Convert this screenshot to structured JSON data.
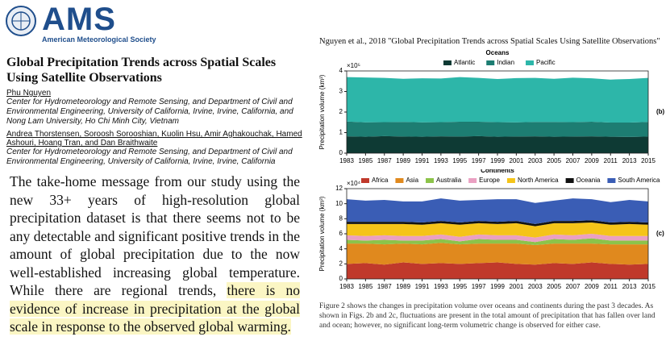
{
  "header": {
    "logo": "AMS",
    "society": "American Meteorological Society"
  },
  "article": {
    "title": "Global Precipitation Trends across Spatial Scales Using Satellite Observations",
    "authors_1": "Phu Nguyen",
    "affiliation_1": "Center for Hydrometeorology and Remote Sensing, and Department of Civil and Environmental Engineering, University of California, Irvine, Irvine, California, and Nong Lam University, Ho Chi Minh City, Vietnam",
    "authors_2": "Andrea Thorstensen, Soroosh Sorooshian, Kuolin Hsu, Amir Aghakouchak, Hamed Ashouri, Hoang Tran, and Dan Braithwaite",
    "affiliation_2": "Center for Hydrometeorology and Remote Sensing, and Department of Civil and Environmental Engineering, University of California, Irvine, Irvine, California"
  },
  "quote": {
    "text": "The take-home message from our study using the new 33+ years of high-resolution global precipitation dataset is that there seems not to be any detectable and significant positive trends in the amount of global precipitation due to the now well-established increasing global temperature. While there are regional trends, ",
    "highlight": "there is no evidence of increase in precipitation at the global scale in response to the observed global warming."
  },
  "figure": {
    "heading": "Nguyen et al., 2018  \"Global Precipitation Trends across Spatial Scales Using Satellite Observations\"",
    "caption": "Figure 2 shows the changes in precipitation volume over oceans and continents during the past 3 decades. As shown in Figs. 2b and 2c, fluctuations are present in the total amount of precipitation that has fallen over land and ocean; however, no significant long-term volumetric change is observed for either case."
  },
  "chart_data": [
    {
      "type": "stacked-area",
      "title": "Oceans",
      "panel": "(b)",
      "y_label": "Precipitation volume (km³)",
      "y_exponent": "×10⁵",
      "x": [
        1983,
        1985,
        1987,
        1989,
        1991,
        1993,
        1995,
        1997,
        1999,
        2001,
        2003,
        2005,
        2007,
        2009,
        2011,
        2013,
        2015
      ],
      "xlim": [
        1983,
        2015
      ],
      "xticks": [
        1983,
        1985,
        1987,
        1989,
        1991,
        1993,
        1995,
        1997,
        1999,
        2001,
        2003,
        2005,
        2007,
        2009,
        2011,
        2013,
        2015
      ],
      "ylim": [
        0,
        4
      ],
      "yticks": [
        0,
        1,
        2,
        3,
        4
      ],
      "series": [
        {
          "name": "Atlantic",
          "color": "#0e3a34",
          "values": [
            0.82,
            0.8,
            0.83,
            0.81,
            0.8,
            0.82,
            0.81,
            0.83,
            0.8,
            0.81,
            0.82,
            0.8,
            0.81,
            0.82,
            0.8,
            0.79,
            0.81
          ]
        },
        {
          "name": "Indian",
          "color": "#1d7d72",
          "values": [
            0.72,
            0.7,
            0.68,
            0.71,
            0.7,
            0.69,
            0.72,
            0.7,
            0.71,
            0.69,
            0.7,
            0.72,
            0.7,
            0.71,
            0.69,
            0.7,
            0.71
          ]
        },
        {
          "name": "Pacific",
          "color": "#2db6a9",
          "values": [
            2.16,
            2.18,
            2.15,
            2.1,
            2.14,
            2.12,
            2.17,
            2.13,
            2.1,
            2.15,
            2.14,
            2.1,
            2.16,
            2.11,
            2.09,
            2.12,
            2.14
          ]
        }
      ]
    },
    {
      "type": "stacked-area",
      "title": "Continents",
      "panel": "(c)",
      "y_label": "Precipitation volume (km³)",
      "y_exponent": "×10⁴",
      "x": [
        1983,
        1985,
        1987,
        1989,
        1991,
        1993,
        1995,
        1997,
        1999,
        2001,
        2003,
        2005,
        2007,
        2009,
        2011,
        2013,
        2015
      ],
      "xlim": [
        1983,
        2015
      ],
      "xticks": [
        1983,
        1985,
        1987,
        1989,
        1991,
        1993,
        1995,
        1997,
        1999,
        2001,
        2003,
        2005,
        2007,
        2009,
        2011,
        2013,
        2015
      ],
      "ylim": [
        0,
        12
      ],
      "yticks": [
        0,
        2,
        4,
        6,
        8,
        10,
        12
      ],
      "series": [
        {
          "name": "Africa",
          "color": "#c0392b",
          "values": [
            2.0,
            2.1,
            1.9,
            2.2,
            2.0,
            2.1,
            2.0,
            2.1,
            2.2,
            2.0,
            1.9,
            2.1,
            2.0,
            2.2,
            2.0,
            1.9,
            2.0
          ]
        },
        {
          "name": "Asia",
          "color": "#e0891e",
          "values": [
            2.7,
            2.6,
            2.7,
            2.5,
            2.6,
            2.7,
            2.6,
            2.6,
            2.5,
            2.7,
            2.6,
            2.6,
            2.7,
            2.5,
            2.6,
            2.7,
            2.6
          ]
        },
        {
          "name": "Australia",
          "color": "#8cc34a",
          "values": [
            0.5,
            0.4,
            0.6,
            0.4,
            0.5,
            0.5,
            0.4,
            0.6,
            0.5,
            0.5,
            0.4,
            0.6,
            0.5,
            0.7,
            0.5,
            0.5,
            0.5
          ]
        },
        {
          "name": "Europe",
          "color": "#eaa0c2",
          "values": [
            0.6,
            0.6,
            0.6,
            0.6,
            0.6,
            0.6,
            0.6,
            0.6,
            0.6,
            0.6,
            0.6,
            0.6,
            0.6,
            0.6,
            0.6,
            0.6,
            0.6
          ]
        },
        {
          "name": "North America",
          "color": "#f5c419",
          "values": [
            1.5,
            1.6,
            1.5,
            1.6,
            1.5,
            1.5,
            1.6,
            1.5,
            1.5,
            1.6,
            1.5,
            1.5,
            1.6,
            1.5,
            1.5,
            1.6,
            1.5
          ]
        },
        {
          "name": "Oceania",
          "color": "#111111",
          "values": [
            0.3,
            0.3,
            0.3,
            0.3,
            0.3,
            0.3,
            0.3,
            0.3,
            0.3,
            0.3,
            0.3,
            0.3,
            0.3,
            0.3,
            0.3,
            0.3,
            0.3
          ]
        },
        {
          "name": "South America",
          "color": "#3a5db5",
          "values": [
            3.0,
            2.8,
            2.9,
            2.7,
            2.8,
            3.0,
            2.9,
            2.8,
            3.0,
            2.9,
            2.8,
            2.7,
            3.0,
            2.8,
            2.7,
            2.9,
            2.8
          ]
        }
      ]
    }
  ]
}
